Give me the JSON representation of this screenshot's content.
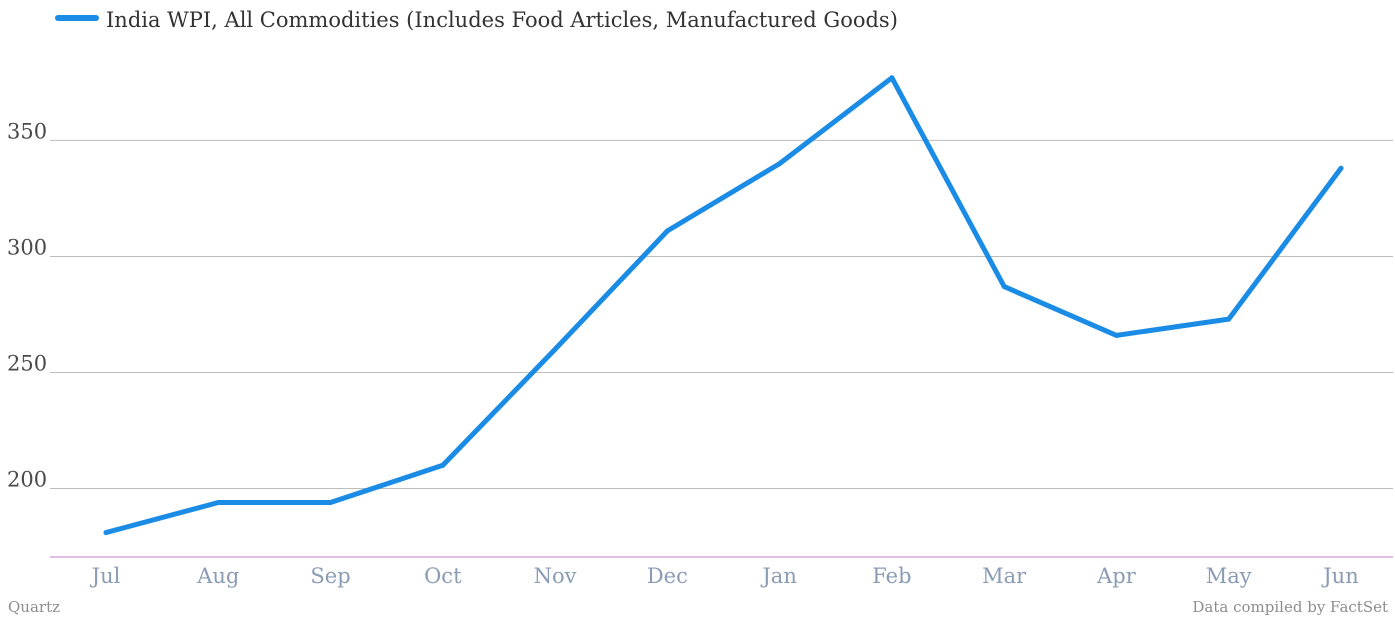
{
  "chart_data": {
    "type": "line",
    "categories": [
      "Jul",
      "Aug",
      "Sep",
      "Oct",
      "Nov",
      "Dec",
      "Jan",
      "Feb",
      "Mar",
      "Apr",
      "May",
      "Jun"
    ],
    "series": [
      {
        "name": "India WPI, All Commodities (Includes Food Articles, Manufactured Goods)",
        "color": "#1a8ce6",
        "values": [
          181,
          194,
          194,
          210,
          260,
          311,
          340,
          377,
          287,
          266,
          273,
          338
        ]
      }
    ],
    "yticks": [
      200,
      250,
      300,
      350
    ],
    "ylim": [
      170.5,
      395
    ],
    "grid": true,
    "legend_position": "top-left",
    "baseline_color": "#c77bc7"
  },
  "footer": {
    "source_left": "Quartz",
    "source_right": "Data compiled by FactSet"
  }
}
